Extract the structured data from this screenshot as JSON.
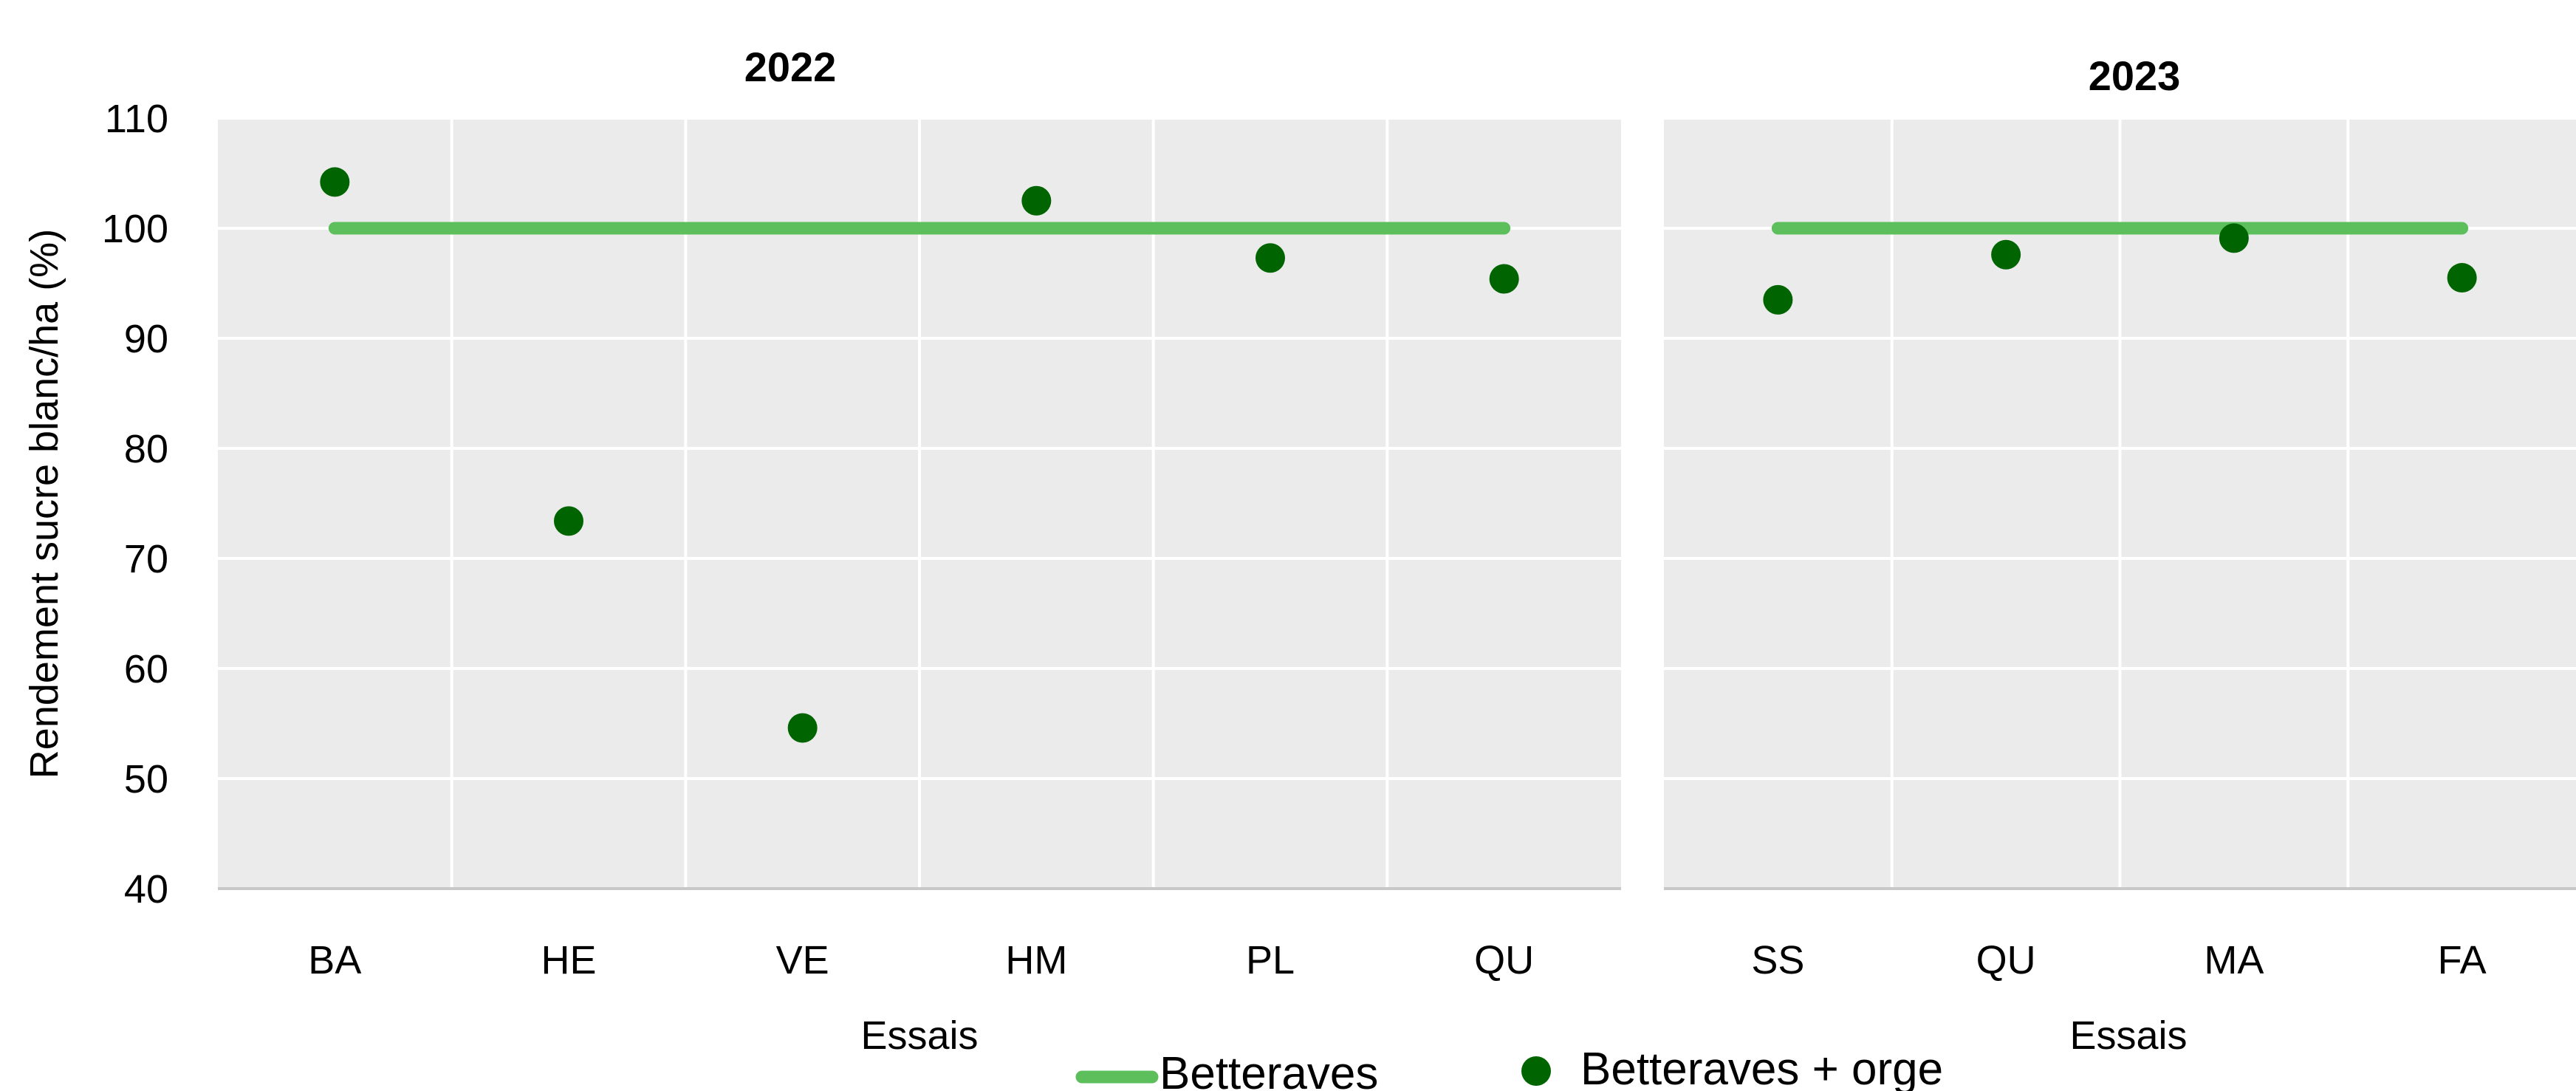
{
  "chart_data": [
    {
      "type": "scatter",
      "title": "2022",
      "xlabel": "Essais",
      "ylabel": "Rendement sucre blanc/ha (%)",
      "ylim": [
        40,
        110
      ],
      "yticks": [
        40,
        50,
        60,
        70,
        80,
        90,
        100,
        110
      ],
      "categories": [
        "BA",
        "HE",
        "VE",
        "HM",
        "PL",
        "QU"
      ],
      "grid": true,
      "series": [
        {
          "name": "Betteraves",
          "kind": "line",
          "color": "#5cbf5c",
          "values": [
            100,
            100,
            100,
            100,
            100,
            100
          ]
        },
        {
          "name": "Betteraves + orge",
          "kind": "marker",
          "color": "#006400",
          "values": [
            104.2,
            73.4,
            54.6,
            102.5,
            97.3,
            95.4
          ]
        }
      ]
    },
    {
      "type": "scatter",
      "title": "2023",
      "xlabel": "Essais",
      "ylim": [
        40,
        110
      ],
      "categories": [
        "SS",
        "QU",
        "MA",
        "FA"
      ],
      "grid": true,
      "series": [
        {
          "name": "Betteraves",
          "kind": "line",
          "color": "#5cbf5c",
          "values": [
            100,
            100,
            100,
            100
          ]
        },
        {
          "name": "Betteraves + orge",
          "kind": "marker",
          "color": "#006400",
          "values": [
            93.5,
            97.6,
            99.1,
            95.5
          ]
        }
      ]
    }
  ],
  "legend": {
    "position": "bottom-center",
    "items": [
      {
        "label": "Betteraves",
        "kind": "line",
        "color": "#5cbf5c"
      },
      {
        "label": "Betteraves + orge",
        "kind": "marker",
        "color": "#006400"
      }
    ]
  },
  "colors": {
    "plot_background": "#ebebeb",
    "gridline": "#ffffff",
    "baseline": "#c8c8c8"
  }
}
